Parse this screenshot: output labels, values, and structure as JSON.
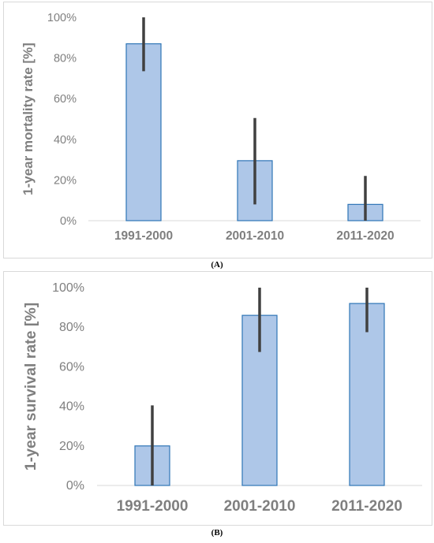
{
  "chart_data": [
    {
      "type": "bar",
      "ylabel": "1-year mortality rate [%]",
      "categories": [
        "1991-2000",
        "2001-2010",
        "2011-2020"
      ],
      "values": [
        87,
        29.5,
        8
      ],
      "error_low": [
        73.5,
        8,
        0
      ],
      "error_high": [
        100,
        50.5,
        22
      ],
      "ylim": [
        0,
        100
      ],
      "yticks": [
        "0%",
        "20%",
        "40%",
        "60%",
        "80%",
        "100%"
      ],
      "grid": false,
      "bar_color": "#aec7e8",
      "bar_edge_color": "#2e75b6",
      "error_color": "#404040",
      "caption": "(A)"
    },
    {
      "type": "bar",
      "ylabel": "1-year survival rate [%]",
      "categories": [
        "1991-2000",
        "2001-2010",
        "2011-2020"
      ],
      "values": [
        20,
        86,
        92
      ],
      "error_low": [
        0,
        67.5,
        77.5
      ],
      "error_high": [
        40.5,
        100,
        100
      ],
      "ylim": [
        0,
        100
      ],
      "yticks": [
        "0%",
        "20%",
        "40%",
        "60%",
        "80%",
        "100%"
      ],
      "grid": false,
      "bar_color": "#aec7e8",
      "bar_edge_color": "#2e75b6",
      "error_color": "#404040",
      "caption": "(B)"
    }
  ]
}
